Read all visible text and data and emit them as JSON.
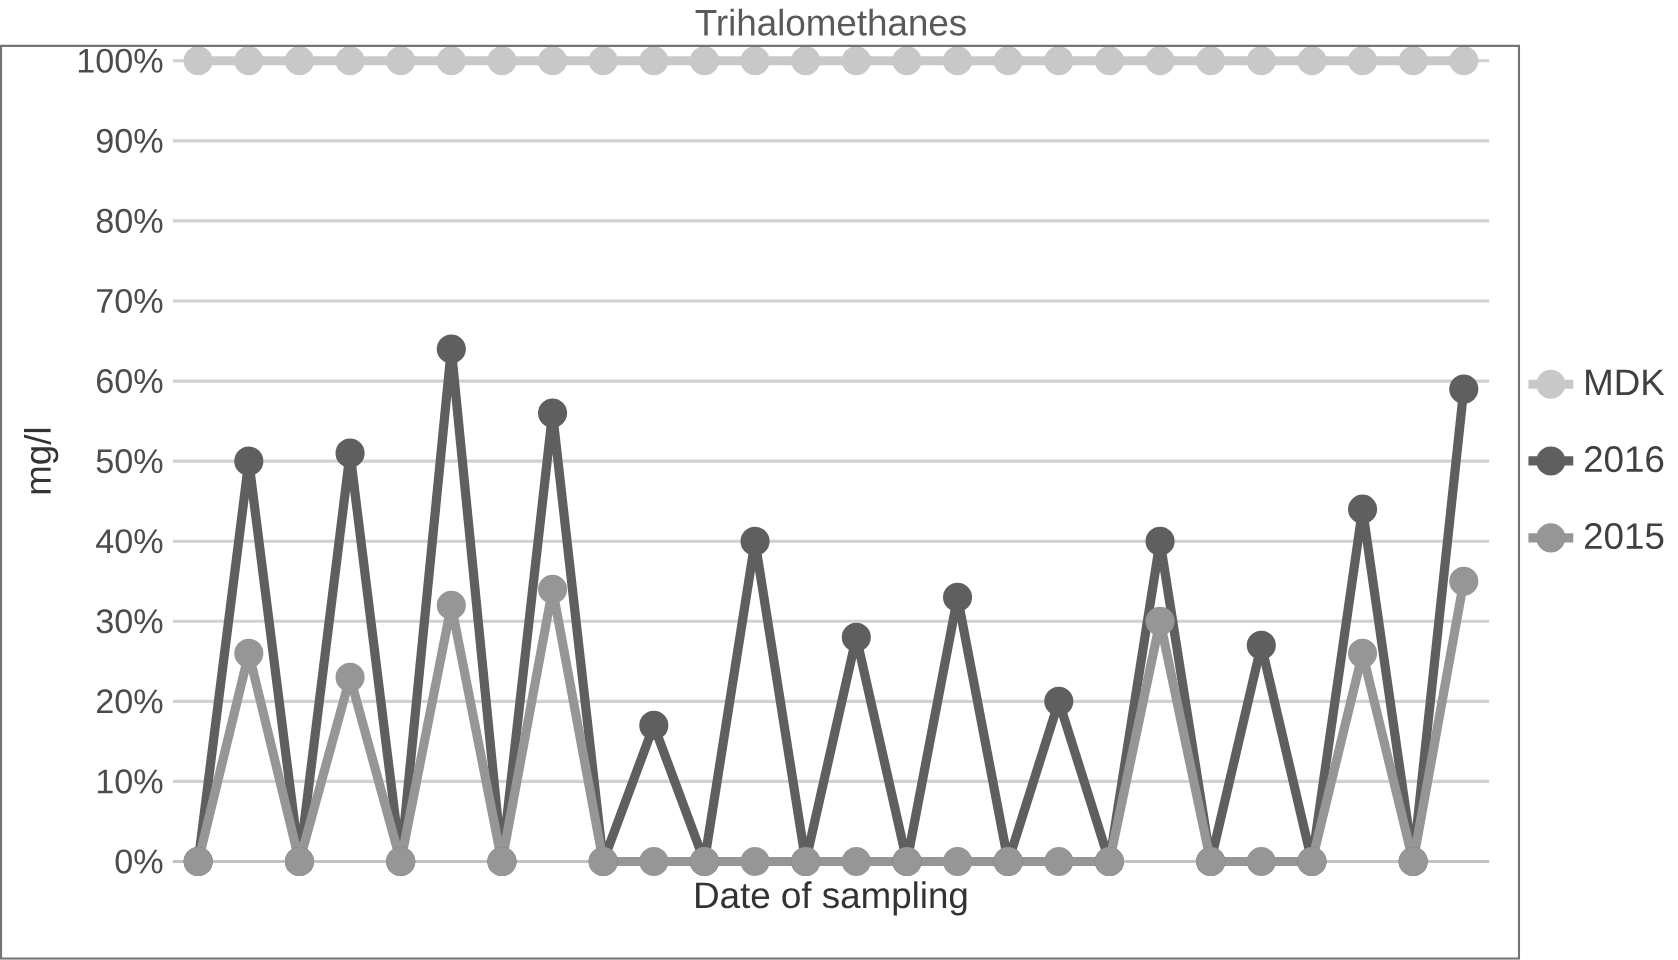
{
  "chart_data": {
    "type": "line",
    "title": "Trihalomethanes",
    "xlabel": "Date of sampling",
    "ylabel": "mg/l",
    "categories": [
      null,
      null,
      null,
      null,
      null,
      null,
      null,
      null,
      null,
      null,
      null,
      null,
      null,
      null,
      null,
      null,
      null,
      null,
      null,
      null,
      null,
      null,
      null,
      null,
      null,
      null
    ],
    "series": [
      {
        "name": "MDK",
        "color": "#c8c8c8",
        "values": [
          100,
          100,
          100,
          100,
          100,
          100,
          100,
          100,
          100,
          100,
          100,
          100,
          100,
          100,
          100,
          100,
          100,
          100,
          100,
          100,
          100,
          100,
          100,
          100,
          100,
          100
        ]
      },
      {
        "name": "2016",
        "color": "#5f5f5f",
        "values": [
          0,
          50,
          0,
          51,
          0,
          64,
          0,
          56,
          0,
          17,
          0,
          40,
          0,
          28,
          0,
          33,
          0,
          20,
          0,
          40,
          0,
          27,
          0,
          44,
          0,
          59
        ]
      },
      {
        "name": "2015",
        "color": "#969696",
        "values": [
          0,
          26,
          0,
          23,
          0,
          32,
          0,
          34,
          0,
          0,
          0,
          0,
          0,
          0,
          0,
          0,
          0,
          0,
          0,
          30,
          0,
          0,
          0,
          26,
          0,
          35
        ]
      }
    ],
    "ylim": [
      0,
      100
    ],
    "yticks": [
      {
        "value": 0,
        "label": "0%"
      },
      {
        "value": 10,
        "label": "10%"
      },
      {
        "value": 20,
        "label": "20%"
      },
      {
        "value": 30,
        "label": "30%"
      },
      {
        "value": 40,
        "label": "40%"
      },
      {
        "value": 50,
        "label": "50%"
      },
      {
        "value": 60,
        "label": "60%"
      },
      {
        "value": 70,
        "label": "70%"
      },
      {
        "value": 80,
        "label": "80%"
      },
      {
        "value": 90,
        "label": "90%"
      },
      {
        "value": 100,
        "label": "100%"
      }
    ],
    "grid": "y",
    "legend": "right",
    "marker": "circle",
    "line_style": "solid",
    "tick_labels": "y"
  }
}
